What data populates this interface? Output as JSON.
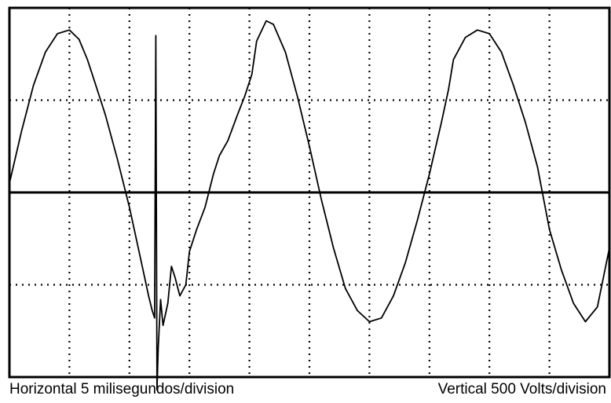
{
  "chart_data": {
    "type": "line",
    "grid": true,
    "grid_style": "dotted",
    "divisions": {
      "horizontal": 10,
      "vertical": 4
    },
    "xlim": [
      0,
      50
    ],
    "ylim": [
      -1000,
      1000
    ],
    "x_unit": "ms",
    "y_unit": "V",
    "zero_line": true,
    "line_color": "#000000",
    "series": [
      {
        "x": [
          0,
          1,
          2,
          3,
          4,
          5,
          5.8,
          6.5,
          7,
          8,
          9,
          10,
          11,
          11.6,
          11.9,
          12.1,
          12.2,
          12.3,
          12.4,
          12.6,
          12.8,
          13.2,
          13.5,
          13.8,
          14.2,
          14.7,
          15,
          15.6,
          16.3,
          17,
          17.5,
          18.2,
          19,
          19.6,
          20.2,
          20.6,
          21.4,
          22,
          23,
          24,
          25,
          26,
          27,
          28,
          29,
          30,
          31,
          32,
          33,
          34,
          35,
          36,
          36.6,
          37,
          38,
          39,
          40,
          41,
          42,
          43,
          44,
          45,
          46,
          47,
          48,
          49,
          50
        ],
        "y": [
          50,
          330,
          580,
          760,
          860,
          880,
          830,
          720,
          620,
          420,
          180,
          -80,
          -380,
          -560,
          -640,
          -680,
          850,
          -1070,
          -840,
          -580,
          -720,
          -600,
          -400,
          -460,
          -560,
          -500,
          -320,
          -200,
          -80,
          100,
          200,
          280,
          420,
          520,
          640,
          820,
          930,
          910,
          760,
          520,
          250,
          -40,
          -300,
          -520,
          -640,
          -700,
          -680,
          -560,
          -380,
          -150,
          100,
          380,
          560,
          720,
          840,
          880,
          860,
          760,
          580,
          380,
          140,
          -200,
          -420,
          -600,
          -700,
          -620,
          -300
        ]
      }
    ]
  },
  "captions": {
    "horizontal": "Horizontal 5 milisegundos/division",
    "vertical": "Vertical 500 Volts/division"
  }
}
